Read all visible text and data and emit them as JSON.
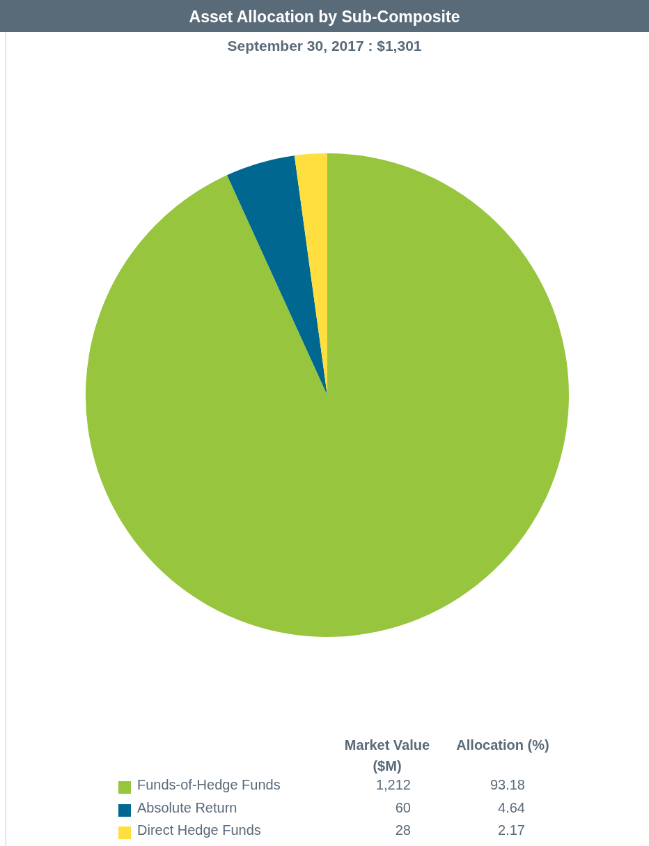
{
  "chart_data": {
    "type": "pie",
    "title": "Asset Allocation by Sub-Composite",
    "subtitle": "September 30, 2017 : $1,301",
    "categories": [
      "Funds-of-Hedge Funds",
      "Absolute Return",
      "Direct Hedge Funds"
    ],
    "values": [
      93.18,
      4.64,
      2.17
    ],
    "colors": [
      "#97c53d",
      "#006890",
      "#fedf3f"
    ],
    "data_labels": true,
    "annotations": [
      "Market Value ($M)",
      "Allocation (%)",
      "1,212",
      "60",
      "28"
    ],
    "legend": "bottom"
  }
}
